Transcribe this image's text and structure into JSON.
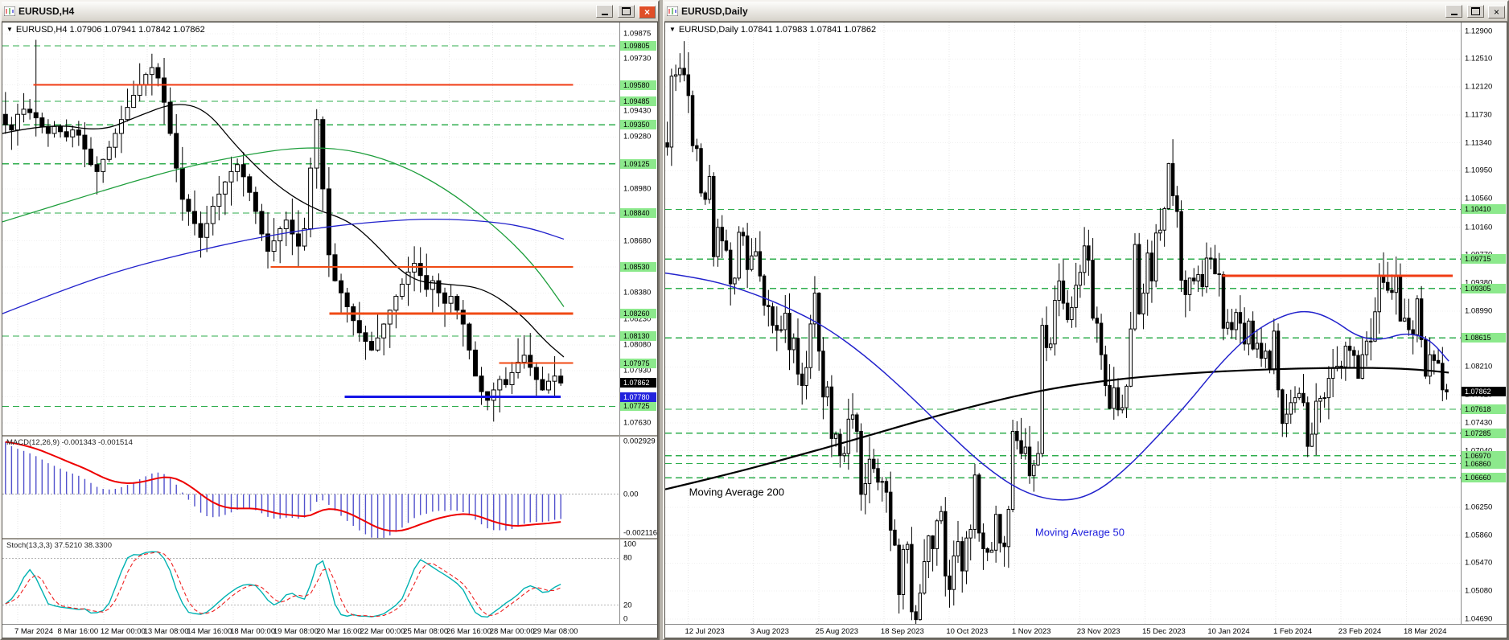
{
  "windows": {
    "left": {
      "title": "EURUSD,H4",
      "info": "EURUSD,H4 1.07906 1.07941 1.07842 1.07862"
    },
    "right": {
      "title": "EURUSD,Daily",
      "info": "EURUSD,Daily 1.07841 1.07983 1.07841 1.07862"
    }
  },
  "colors": {
    "level_green": "#2fae4e",
    "badge_green": "#8ce98c",
    "accent_orange": "#f03c14",
    "accent_blue": "#1414e6",
    "grid": "#e7e7e7",
    "hist": "#5151cc",
    "signal": "#ee0000",
    "stoch_k": "#00b2b2",
    "stoch_d": "#ee2222"
  },
  "chart_data": [
    {
      "id": "h4",
      "type": "candlestick",
      "symbol": "EURUSD",
      "timeframe": "H4",
      "ohlc_display": {
        "open": "1.07906",
        "high": "1.07941",
        "low": "1.07842",
        "close": "1.07862"
      },
      "ylim": [
        1.0756,
        1.0994
      ],
      "span": 0.91,
      "wick": 0.0014,
      "y_ticks": [
        "1.09875",
        "1.09730",
        "1.09580",
        "1.09430",
        "1.09280",
        "1.09130",
        "1.08980",
        "1.08830",
        "1.08680",
        "1.08530",
        "1.08380",
        "1.08230",
        "1.08080",
        "1.07930",
        "1.07780",
        "1.07630"
      ],
      "x_labels": [
        "7 Mar 2024",
        "8 Mar 16:00",
        "12 Mar 00:00",
        "13 Mar 08:00",
        "14 Mar 16:00",
        "18 Mar 00:00",
        "19 Mar 08:00",
        "20 Mar 16:00",
        "22 Mar 00:00",
        "25 Mar 08:00",
        "26 Mar 16:00",
        "28 Mar 00:00",
        "29 Mar 08:00"
      ],
      "closes": [
        1.0935,
        1.0932,
        1.0941,
        1.0944,
        1.0942,
        1.0939,
        1.0934,
        1.093,
        1.0934,
        1.0931,
        1.0928,
        1.0932,
        1.0929,
        1.0921,
        1.0912,
        1.0908,
        1.0915,
        1.0922,
        1.093,
        1.0938,
        1.0945,
        1.0952,
        1.0958,
        1.0964,
        1.0968,
        1.0962,
        1.0948,
        1.093,
        1.091,
        1.0892,
        1.0885,
        1.0878,
        1.087,
        1.0878,
        1.0888,
        1.0895,
        1.0902,
        1.0908,
        1.0912,
        1.0905,
        1.0896,
        1.0885,
        1.0872,
        1.0862,
        1.0868,
        1.0875,
        1.088,
        1.0872,
        1.0865,
        1.0875,
        1.091,
        1.0938,
        1.0898,
        1.086,
        1.0845,
        1.0838,
        1.083,
        1.0822,
        1.0815,
        1.081,
        1.0805,
        1.0812,
        1.082,
        1.0828,
        1.0836,
        1.0843,
        1.085,
        1.0855,
        1.0848,
        1.084,
        1.0845,
        1.0838,
        1.0832,
        1.0836,
        1.0828,
        1.082,
        1.0805,
        1.079,
        1.0781,
        1.0776,
        1.0782,
        1.0788,
        1.0785,
        1.0792,
        1.0798,
        1.0802,
        1.0795,
        1.0788,
        1.0782,
        1.0787,
        1.079,
        1.0786
      ],
      "extremes": [
        {
          "i": 5,
          "h": 1.0984
        },
        {
          "i": 24,
          "h": 1.0976
        },
        {
          "i": 51,
          "h": 1.0944
        }
      ],
      "green_levels": [
        1.09805,
        1.09485,
        1.0935,
        1.09125,
        1.0884,
        1.0813,
        1.07725
      ],
      "segments": [
        {
          "price": 1.0958,
          "x1": 0.05,
          "x2": 0.925,
          "color": "#f03c14",
          "w": 2
        },
        {
          "price": 1.0853,
          "x1": 0.435,
          "x2": 0.925,
          "color": "#f04a14",
          "w": 2
        },
        {
          "price": 1.0826,
          "x1": 0.53,
          "x2": 0.925,
          "color": "#f04a14",
          "w": 3
        },
        {
          "price": 1.07975,
          "x1": 0.805,
          "x2": 0.925,
          "color": "#f04a14",
          "w": 2
        },
        {
          "price": 1.0778,
          "x1": 0.555,
          "x2": 0.905,
          "color": "#1414e6",
          "w": 3
        }
      ],
      "mas": [
        {
          "name": "ma-fast",
          "color": "#000000",
          "w": 1.3,
          "points": [
            [
              0,
              1.093
            ],
            [
              0.08,
              1.0936
            ],
            [
              0.16,
              1.0931
            ],
            [
              0.22,
              1.094
            ],
            [
              0.28,
              1.0948
            ],
            [
              0.33,
              1.0944
            ],
            [
              0.38,
              1.0922
            ],
            [
              0.44,
              1.0901
            ],
            [
              0.5,
              1.0887
            ],
            [
              0.56,
              1.088
            ],
            [
              0.6,
              1.0868
            ],
            [
              0.66,
              1.0845
            ],
            [
              0.72,
              1.0843
            ],
            [
              0.78,
              1.0841
            ],
            [
              0.84,
              1.0826
            ],
            [
              0.88,
              1.081
            ],
            [
              0.91,
              1.0801
            ]
          ]
        },
        {
          "name": "ma-mid",
          "color": "#1e9e3c",
          "w": 1.3,
          "points": [
            [
              0,
              1.0879
            ],
            [
              0.1,
              1.089
            ],
            [
              0.2,
              1.0901
            ],
            [
              0.3,
              1.0911
            ],
            [
              0.4,
              1.0918
            ],
            [
              0.48,
              1.0922
            ],
            [
              0.56,
              1.0921
            ],
            [
              0.64,
              1.0913
            ],
            [
              0.72,
              1.0898
            ],
            [
              0.8,
              1.0876
            ],
            [
              0.86,
              1.0855
            ],
            [
              0.91,
              1.083
            ]
          ]
        },
        {
          "name": "ma-slow",
          "color": "#2222cc",
          "w": 1.3,
          "points": [
            [
              0,
              1.0826
            ],
            [
              0.1,
              1.084
            ],
            [
              0.2,
              1.0852
            ],
            [
              0.3,
              1.0861
            ],
            [
              0.4,
              1.0869
            ],
            [
              0.5,
              1.0875
            ],
            [
              0.6,
              1.0879
            ],
            [
              0.7,
              1.0881
            ],
            [
              0.8,
              1.0879
            ],
            [
              0.86,
              1.0875
            ],
            [
              0.91,
              1.0869
            ]
          ]
        }
      ],
      "badges": {
        "green": [
          "1.09805",
          "1.09580",
          "1.09485",
          "1.09350",
          "1.09125",
          "1.08840",
          "1.08530",
          "1.08260",
          "1.08130",
          "1.07975",
          "1.07725"
        ],
        "blue": [
          "1.07780"
        ],
        "current": "1.07862"
      },
      "texts": []
    },
    {
      "id": "macd",
      "type": "macd",
      "source": 0,
      "label": "MACD(12,26,9) -0.001343 -0.001514",
      "params": [
        12,
        26,
        9
      ],
      "values_display": [
        "-0.001343",
        "-0.001514"
      ],
      "ylim": [
        -0.00232,
        0.00306
      ],
      "scale_marks": [
        {
          "text": "0.002929",
          "v": 0.002929
        },
        {
          "text": "0.00",
          "v": 0
        },
        {
          "text": "-0.002116",
          "v": -0.002116
        }
      ]
    },
    {
      "id": "stoch",
      "type": "stoch",
      "source": 0,
      "label": "Stoch(13,3,3) 37.5210 38.3300",
      "params": [
        13,
        3,
        3
      ],
      "values_display": [
        "37.5210",
        "38.3300"
      ],
      "ylim": [
        -4,
        104
      ],
      "levels": [
        80,
        20
      ],
      "scale_marks": [
        {
          "text": "100",
          "v": 100
        },
        {
          "text": "80",
          "v": 80
        },
        {
          "text": "20",
          "v": 20
        },
        {
          "text": "0",
          "v": 0
        }
      ]
    },
    {
      "id": "daily",
      "type": "candlestick",
      "symbol": "EURUSD",
      "timeframe": "Daily",
      "ohlc_display": {
        "open": "1.07841",
        "high": "1.07983",
        "low": "1.07841",
        "close": "1.07862"
      },
      "ylim": [
        1.0462,
        1.1302
      ],
      "span": 0.985,
      "wick": 0.0032,
      "y_ticks": [
        "1.12900",
        "1.12510",
        "1.12120",
        "1.11730",
        "1.11340",
        "1.10950",
        "1.10560",
        "1.10160",
        "1.09770",
        "1.09380",
        "1.08990",
        "1.08600",
        "1.08210",
        "1.07820",
        "1.07430",
        "1.07040",
        "1.06650",
        "1.06250",
        "1.05860",
        "1.05470",
        "1.05080",
        "1.04690"
      ],
      "x_labels": [
        "12 Jul 2023",
        "3 Aug 2023",
        "25 Aug 2023",
        "18 Sep 2023",
        "10 Oct 2023",
        "1 Nov 2023",
        "23 Nov 2023",
        "15 Dec 2023",
        "10 Jan 2024",
        "1 Feb 2024",
        "23 Feb 2024",
        "18 Mar 2024"
      ],
      "closes": [
        1.1128,
        1.1227,
        1.1229,
        1.1238,
        1.1229,
        1.12,
        1.113,
        1.1126,
        1.1064,
        1.1055,
        1.1087,
        1.0975,
        1.1016,
        1.0997,
        1.0984,
        1.0937,
        1.0945,
        1.1009,
        1.1004,
        1.0957,
        1.0976,
        1.0982,
        1.0948,
        1.0907,
        1.0905,
        1.0879,
        1.0872,
        1.0873,
        1.0896,
        1.0845,
        1.0861,
        1.0811,
        1.0795,
        1.082,
        1.0881,
        1.0924,
        1.0843,
        1.0779,
        1.0793,
        1.0721,
        1.0727,
        1.0697,
        1.07,
        1.0748,
        1.0754,
        1.0731,
        1.0643,
        1.0658,
        1.0692,
        1.0679,
        1.066,
        1.0661,
        1.0646,
        1.0593,
        1.0572,
        1.0503,
        1.0566,
        1.0573,
        1.0479,
        1.0468,
        1.0505,
        1.0549,
        1.0585,
        1.0567,
        1.0606,
        1.0619,
        1.0529,
        1.051,
        1.0557,
        1.0577,
        1.0536,
        1.0582,
        1.0594,
        1.067,
        1.0589,
        1.0567,
        1.0562,
        1.0565,
        1.0615,
        1.0575,
        1.057,
        1.0622,
        1.0731,
        1.0718,
        1.07,
        1.0709,
        1.0669,
        1.0684,
        1.07,
        1.0879,
        1.0848,
        1.0853,
        1.0914,
        1.0941,
        1.091,
        1.0887,
        1.0904,
        1.0935,
        1.0953,
        1.099,
        1.097,
        1.0889,
        1.0882,
        1.0838,
        1.0795,
        1.0763,
        1.0792,
        1.0761,
        1.0764,
        1.0794,
        1.0874,
        1.0992,
        1.0895,
        1.0924,
        1.098,
        1.0941,
        1.1008,
        1.1012,
        1.1042,
        1.1105,
        1.106,
        1.1038,
        1.0942,
        1.0922,
        1.0945,
        1.0941,
        1.095,
        1.0933,
        1.0973,
        1.0972,
        1.0951,
        1.095,
        1.0875,
        1.0883,
        1.0873,
        1.0897,
        1.0882,
        1.0853,
        1.0885,
        1.0846,
        1.0854,
        1.0833,
        1.0843,
        1.0817,
        1.0871,
        1.0789,
        1.0742,
        1.0755,
        1.0771,
        1.0778,
        1.0784,
        1.0771,
        1.071,
        1.0727,
        1.0773,
        1.0777,
        1.0778,
        1.0805,
        1.0819,
        1.0822,
        1.0821,
        1.085,
        1.0844,
        1.0837,
        1.0805,
        1.0838,
        1.0857,
        1.0857,
        1.0898,
        1.0948,
        1.0939,
        1.0928,
        1.0925,
        1.0947,
        1.0885,
        1.0889,
        1.0873,
        1.0866,
        1.0916,
        1.0859,
        1.0808,
        1.0838,
        1.083,
        1.0826,
        1.0789,
        1.0786
      ],
      "extremes": [
        {
          "i": 4,
          "h": 1.1276
        },
        {
          "i": 59,
          "l": 1.0448
        },
        {
          "i": 120,
          "h": 1.1139
        },
        {
          "i": 152,
          "l": 1.0695
        },
        {
          "i": 170,
          "h": 1.0981
        }
      ],
      "green_levels": [
        1.1041,
        1.09715,
        1.09305,
        1.08615,
        1.07618,
        1.07285,
        1.0697,
        1.0686,
        1.0666
      ],
      "segments": [
        {
          "price": 1.0948,
          "x1": 0.7,
          "x2": 0.99,
          "color": "#f03c14",
          "w": 3
        }
      ],
      "mas": [
        {
          "name": "moving-average-200",
          "color": "#000000",
          "w": 2.2,
          "points": [
            [
              0,
              1.065
            ],
            [
              0.08,
              1.0671
            ],
            [
              0.16,
              1.0695
            ],
            [
              0.24,
              1.072
            ],
            [
              0.32,
              1.0746
            ],
            [
              0.4,
              1.077
            ],
            [
              0.48,
              1.079
            ],
            [
              0.56,
              1.0803
            ],
            [
              0.64,
              1.0811
            ],
            [
              0.72,
              1.0816
            ],
            [
              0.8,
              1.0819
            ],
            [
              0.88,
              1.082
            ],
            [
              0.94,
              1.0818
            ],
            [
              0.985,
              1.0813
            ]
          ]
        },
        {
          "name": "moving-average-50",
          "color": "#2222cc",
          "w": 1.5,
          "points": [
            [
              0,
              1.0952
            ],
            [
              0.05,
              1.0944
            ],
            [
              0.1,
              1.0928
            ],
            [
              0.15,
              1.0906
            ],
            [
              0.2,
              1.0878
            ],
            [
              0.25,
              1.0838
            ],
            [
              0.3,
              1.0789
            ],
            [
              0.35,
              1.0735
            ],
            [
              0.4,
              1.0683
            ],
            [
              0.45,
              1.0645
            ],
            [
              0.5,
              1.0632
            ],
            [
              0.54,
              1.0644
            ],
            [
              0.58,
              1.0679
            ],
            [
              0.62,
              1.0725
            ],
            [
              0.66,
              1.0774
            ],
            [
              0.7,
              1.0829
            ],
            [
              0.74,
              1.0871
            ],
            [
              0.78,
              1.0895
            ],
            [
              0.81,
              1.09
            ],
            [
              0.84,
              1.0887
            ],
            [
              0.87,
              1.0863
            ],
            [
              0.9,
              1.0858
            ],
            [
              0.93,
              1.0869
            ],
            [
              0.96,
              1.0861
            ],
            [
              0.985,
              1.0829
            ]
          ]
        }
      ],
      "badges": {
        "green": [
          "1.10410",
          "1.09715",
          "1.09305",
          "1.08615",
          "1.07618",
          "1.07285",
          "1.06970",
          "1.06860",
          "1.06660"
        ],
        "blue": [],
        "current": "1.07862"
      },
      "texts": [
        {
          "text": "Moving Average 200",
          "x": 0.03,
          "price": 1.0641,
          "color": "#000000",
          "size": 13
        },
        {
          "text": "Moving Average 50",
          "x": 0.465,
          "price": 1.0585,
          "color": "#2020dd",
          "size": 13
        }
      ]
    }
  ]
}
